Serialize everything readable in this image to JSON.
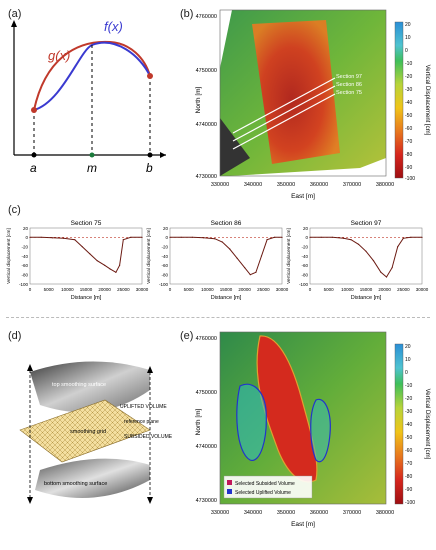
{
  "panels": {
    "a": {
      "label": "(a)",
      "f_label": "f(x)",
      "g_label": "g(x)",
      "x_a": "a",
      "x_m": "m",
      "x_b": "b",
      "colors": {
        "f": "#3a3ad0",
        "g": "#c0392b",
        "guide": "#1a7a3a",
        "point": "#c0392b"
      }
    },
    "b": {
      "label": "(b)",
      "y_title": "North [m]",
      "x_title": "East [m]",
      "y_ticks": [
        "4760000",
        "4750000",
        "4740000",
        "4730000"
      ],
      "x_ticks": [
        "330000",
        "340000",
        "350000",
        "360000",
        "370000",
        "380000"
      ],
      "sections": [
        "Section 97",
        "Section 86",
        "Section 75"
      ],
      "colorbar_title": "Vertical Displacement [cm]",
      "colorbar_ticks": [
        "20",
        "10",
        "0",
        "-10",
        "-20",
        "-30",
        "-40",
        "-50",
        "-60",
        "-70",
        "-80",
        "-90",
        "-100"
      ]
    },
    "c": {
      "label": "(c)",
      "y_title": "Vertical displacement [cm]",
      "x_title": "Distance [m]",
      "y_ticks": [
        "20",
        "0",
        "-20",
        "-40",
        "-60",
        "-80",
        "-100"
      ],
      "x_ticks": [
        "0",
        "5000",
        "10000",
        "15000",
        "20000",
        "25000",
        "30000"
      ]
    },
    "d": {
      "label": "(d)",
      "top_surface": "top smoothing surface",
      "uplifted": "UPLIFTED VOLUME",
      "reference": "reference plane",
      "grid": "smoothing grid",
      "subsided": "SUBSIDED VOLUME",
      "bottom_surface": "bottom smoothing surface"
    },
    "e": {
      "label": "(e)",
      "y_title": "North [m]",
      "x_title": "East [m]",
      "y_ticks": [
        "4760000",
        "4750000",
        "4740000",
        "4730000"
      ],
      "x_ticks": [
        "330000",
        "340000",
        "350000",
        "360000",
        "370000",
        "380000"
      ],
      "colorbar_title": "Vertical Displacement [cm]",
      "colorbar_ticks": [
        "20",
        "10",
        "0",
        "-10",
        "-20",
        "-30",
        "-40",
        "-50",
        "-60",
        "-70",
        "-80",
        "-90",
        "-100"
      ],
      "legend": [
        {
          "label": "Selected Subsided Volume",
          "color": "#c2185b"
        },
        {
          "label": "Selected Uplifted Volume",
          "color": "#2233cc"
        }
      ]
    }
  },
  "chart_data": [
    {
      "type": "line",
      "title": "Section 75",
      "xlabel": "Distance [m]",
      "ylabel": "Vertical displacement [cm]",
      "xlim": [
        0,
        30000
      ],
      "ylim": [
        -100,
        20
      ],
      "x": [
        0,
        3000,
        6000,
        9000,
        12000,
        14000,
        16000,
        18000,
        20000,
        21500,
        23000,
        24000,
        25000,
        27000,
        30000
      ],
      "y": [
        0,
        0,
        -1,
        -2,
        -5,
        -20,
        -35,
        -50,
        -60,
        -68,
        -75,
        -60,
        -5,
        0,
        0
      ]
    },
    {
      "type": "line",
      "title": "Section 86",
      "xlabel": "Distance [m]",
      "ylabel": "Vertical displacement [cm]",
      "xlim": [
        0,
        30000
      ],
      "ylim": [
        -100,
        20
      ],
      "x": [
        0,
        3000,
        6000,
        9000,
        12000,
        14000,
        16000,
        18000,
        20000,
        21500,
        23000,
        24500,
        26000,
        28000,
        30000
      ],
      "y": [
        0,
        0,
        0,
        -1,
        -3,
        -10,
        -25,
        -45,
        -65,
        -80,
        -75,
        -40,
        -5,
        0,
        0
      ]
    },
    {
      "type": "line",
      "title": "Section 97",
      "xlabel": "Distance [m]",
      "ylabel": "Vertical displacement [cm]",
      "xlim": [
        0,
        30000
      ],
      "ylim": [
        -100,
        20
      ],
      "x": [
        0,
        3000,
        6000,
        9000,
        11000,
        13000,
        15000,
        17000,
        19000,
        20500,
        22000,
        23500,
        25000,
        27000,
        30000
      ],
      "y": [
        0,
        0,
        0,
        -2,
        -5,
        -15,
        -30,
        -50,
        -75,
        -85,
        -65,
        -20,
        -2,
        0,
        0
      ]
    }
  ]
}
